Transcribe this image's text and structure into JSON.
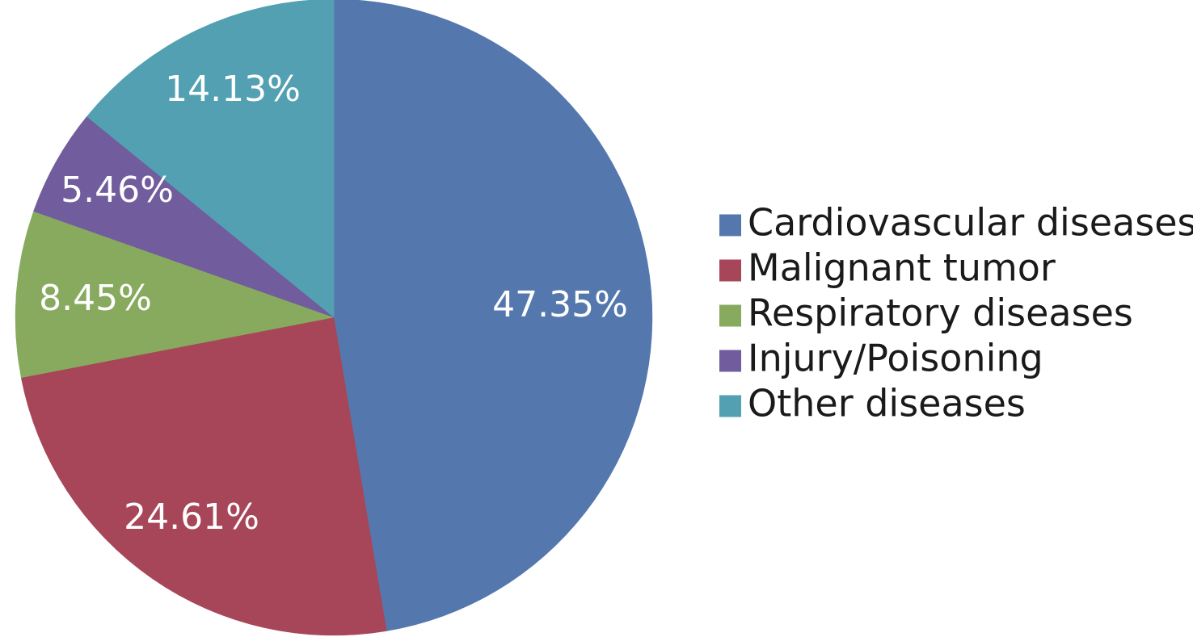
{
  "chart_data": {
    "type": "pie",
    "categories": [
      "Cardiovascular diseases",
      "Malignant tumor",
      "Respiratory diseases",
      "Injury/Poisoning",
      "Other diseases"
    ],
    "values": [
      47.35,
      24.61,
      8.45,
      5.46,
      14.13
    ],
    "labels": [
      "47.35%",
      "24.61%",
      "8.45%",
      "5.46%",
      "14.13%"
    ],
    "colors": [
      "#5478ad",
      "#a84659",
      "#87aa5f",
      "#715c9d",
      "#52a0b2"
    ],
    "start_angle": "12 o'clock",
    "direction": "clockwise",
    "legend_position": "right",
    "legend_marker": "square"
  }
}
